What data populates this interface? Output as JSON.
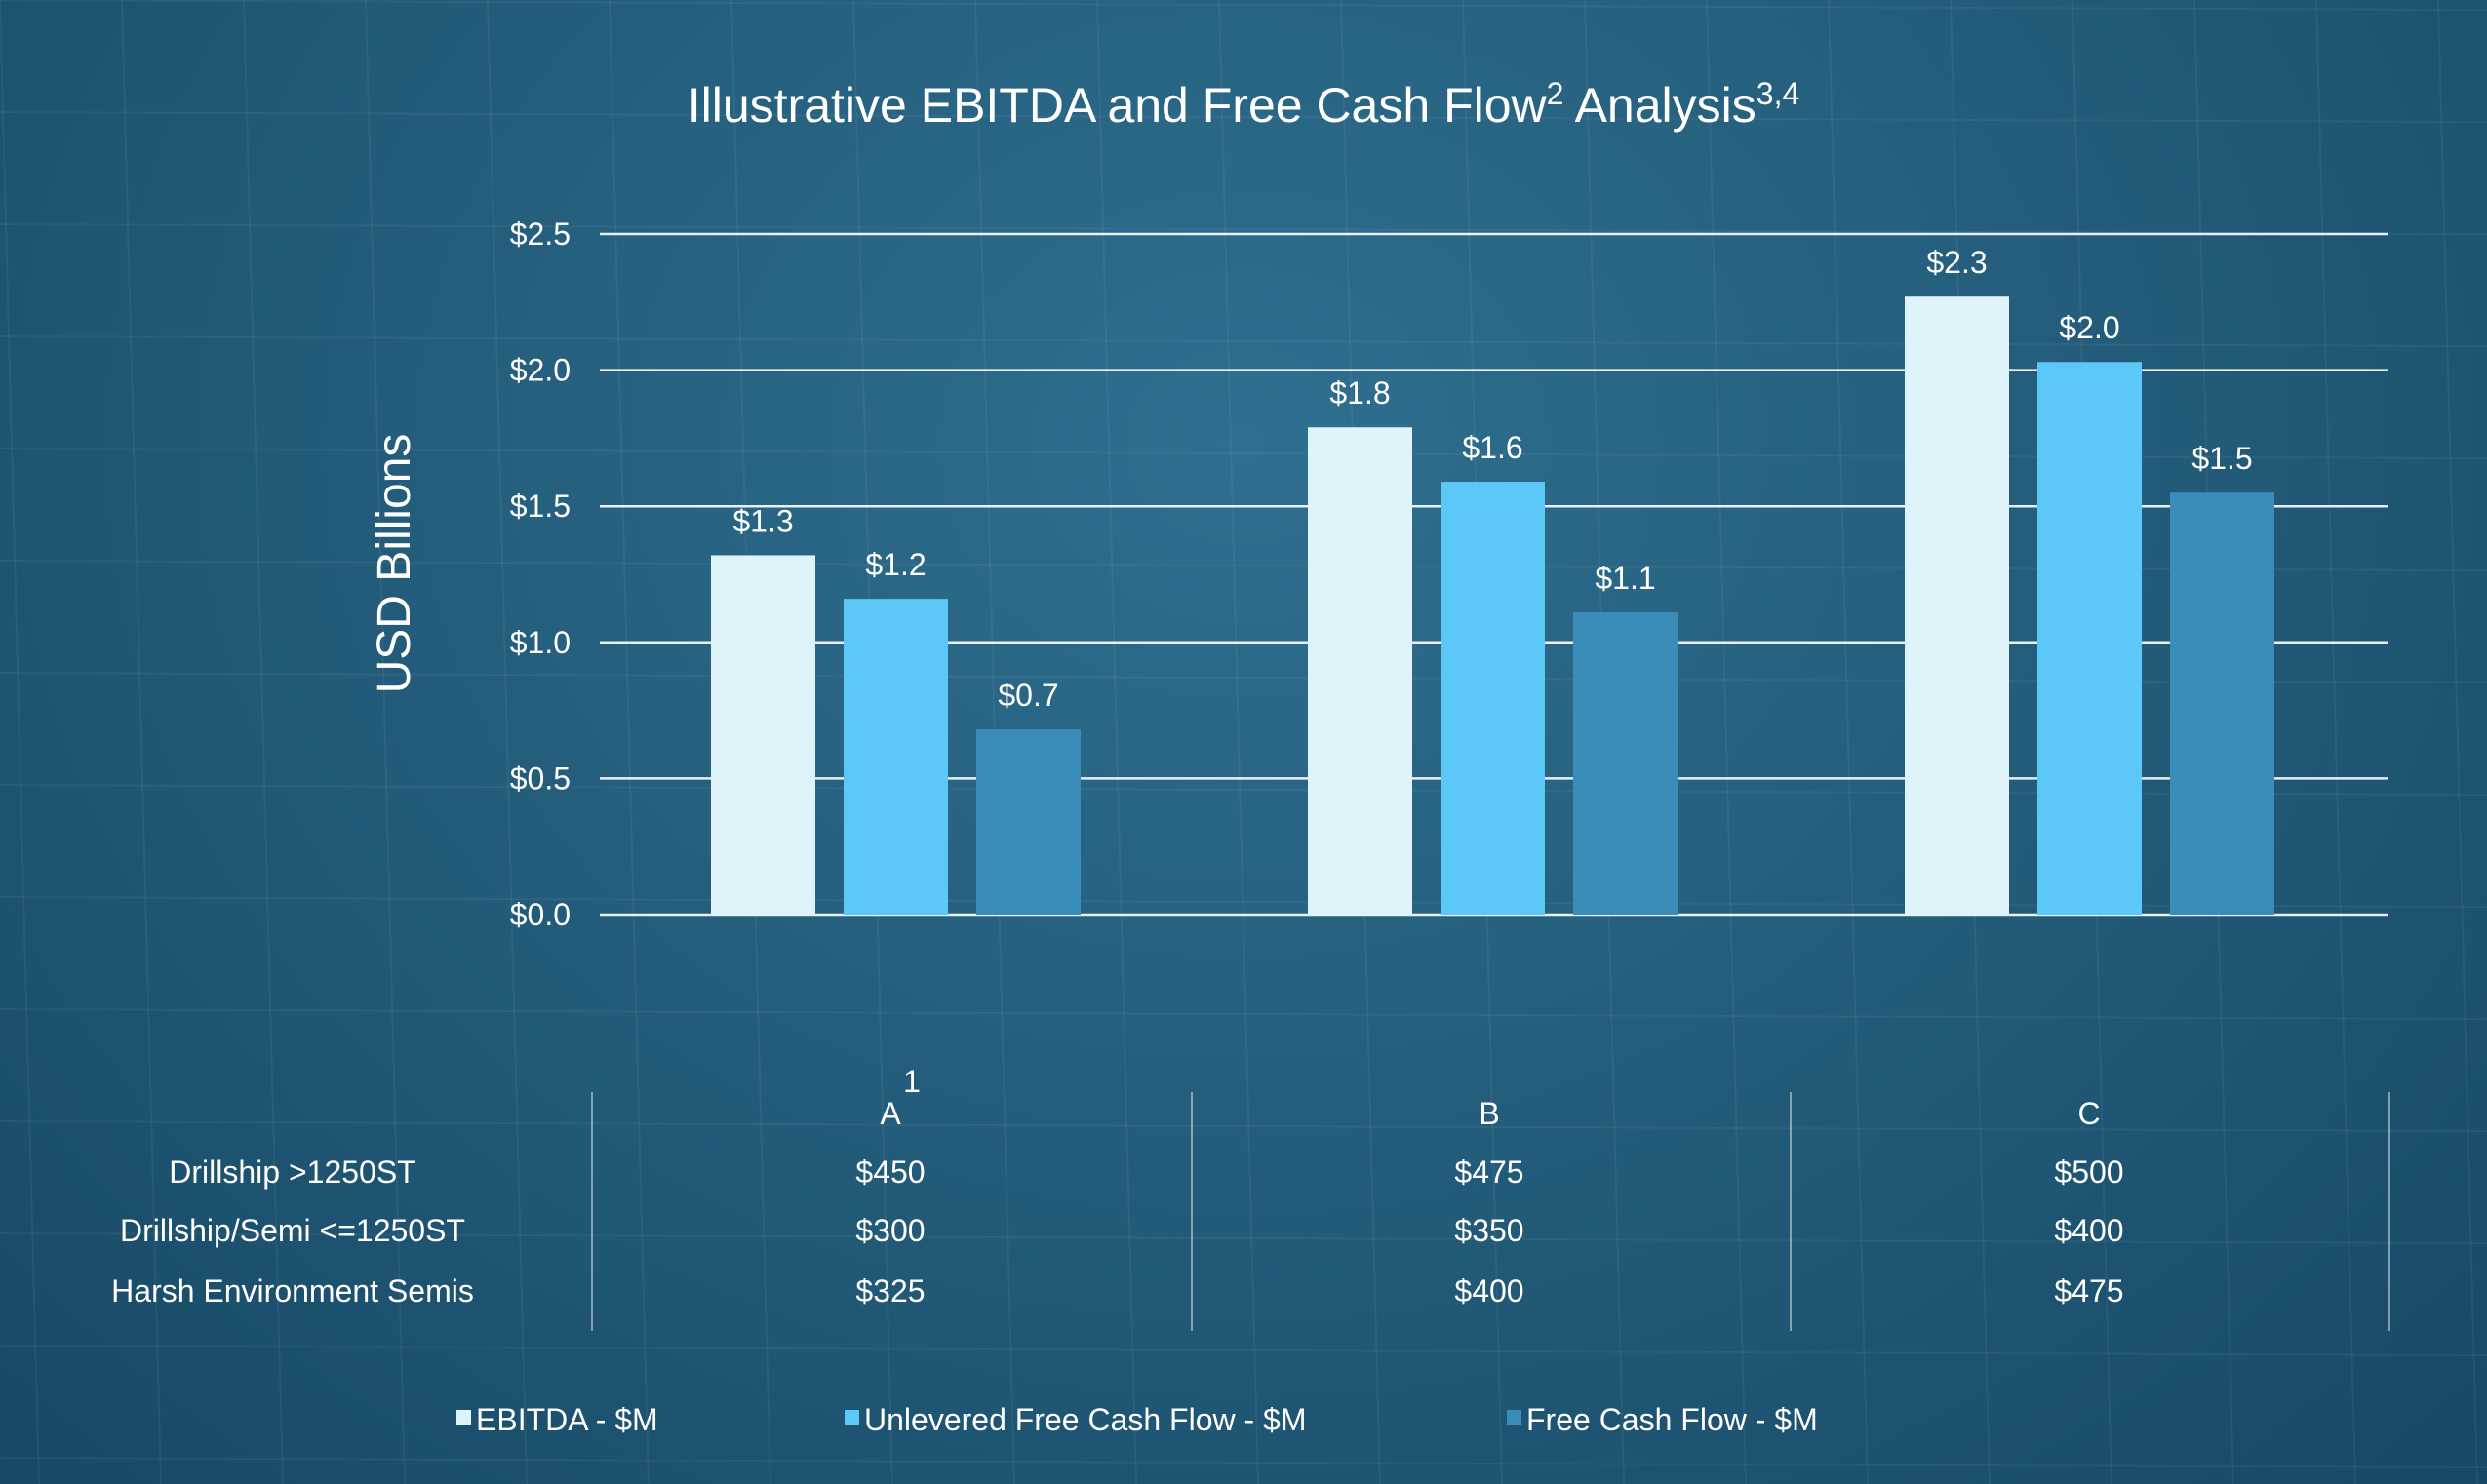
{
  "chart_data": {
    "type": "bar",
    "title": "Illustrative EBITDA and Free Cash Flow",
    "title_sup_1": "2",
    "title_suffix": " Analysis",
    "title_sup_2": "3,4",
    "ylabel": "USD Billions",
    "xlabel": "",
    "ylim": [
      0,
      2.5
    ],
    "yticks": [
      "$0.0",
      "$0.5",
      "$1.0",
      "$1.5",
      "$2.0",
      "$2.5"
    ],
    "grid": true,
    "legend_position": "bottom",
    "categories": [
      "A",
      "B",
      "C"
    ],
    "category_footnote": "1",
    "series": [
      {
        "name": "EBITDA - $M",
        "color": "#dff3fb",
        "values": [
          1.32,
          1.79,
          2.27
        ],
        "labels": [
          "$1.3",
          "$1.8",
          "$2.3"
        ]
      },
      {
        "name": "Unlevered Free Cash Flow - $M",
        "color": "#5bc8f8",
        "values": [
          1.16,
          1.59,
          2.03
        ],
        "labels": [
          "$1.2",
          "$1.6",
          "$2.0"
        ]
      },
      {
        "name": "Free Cash Flow - $M",
        "color": "#3a8db9",
        "values": [
          0.68,
          1.11,
          1.55
        ],
        "labels": [
          "$0.7",
          "$1.1",
          "$1.5"
        ]
      }
    ],
    "table": {
      "rows": [
        {
          "label": "Drillship >1250ST",
          "values": [
            "$450",
            "$475",
            "$500"
          ]
        },
        {
          "label": "Drillship/Semi <=1250ST",
          "values": [
            "$300",
            "$350",
            "$400"
          ]
        },
        {
          "label": "Harsh Environment Semis",
          "values": [
            "$325",
            "$400",
            "$475"
          ]
        }
      ]
    }
  }
}
